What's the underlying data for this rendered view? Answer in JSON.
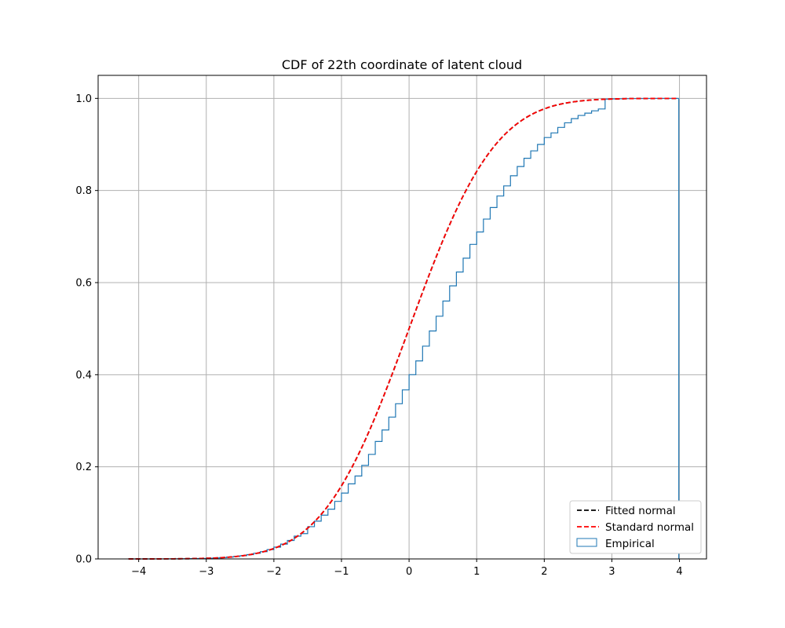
{
  "chart_data": {
    "type": "line",
    "title": "CDF of 22th coordinate of latent cloud",
    "xlabel": "",
    "ylabel": "",
    "xlim": [
      -4.6,
      4.4
    ],
    "ylim": [
      0,
      1.05
    ],
    "xticks": [
      -4,
      -3,
      -2,
      -1,
      0,
      1,
      2,
      3,
      4
    ],
    "yticks": [
      0.0,
      0.2,
      0.4,
      0.6,
      0.8,
      1.0
    ],
    "xtick_labels": [
      "−4",
      "−3",
      "−2",
      "−1",
      "0",
      "1",
      "2",
      "3",
      "4"
    ],
    "ytick_labels": [
      "0.0",
      "0.2",
      "0.4",
      "0.6",
      "0.8",
      "1.0"
    ],
    "grid": true,
    "legend_position": "lower-right",
    "series": [
      {
        "name": "Fitted normal",
        "kind": "normal-cdf",
        "mean": 0.0,
        "std": 1.0,
        "x_range": [
          -4.15,
          3.95
        ],
        "color": "#000000",
        "dash": true
      },
      {
        "name": "Standard normal",
        "kind": "normal-cdf",
        "mean": 0.0,
        "std": 1.0,
        "x_range": [
          -4.15,
          3.95
        ],
        "color": "#ff0000",
        "dash": true
      },
      {
        "name": "Empirical",
        "kind": "step-histogram",
        "color": "#1f77b4",
        "bin_width": 0.1,
        "x_range": [
          -4.15,
          3.99
        ],
        "points": [
          [
            -1.6,
            0.055
          ],
          [
            -1.5,
            0.07
          ],
          [
            -1.4,
            0.082
          ],
          [
            -1.3,
            0.095
          ],
          [
            -1.2,
            0.108
          ],
          [
            -1.1,
            0.125
          ],
          [
            -1.0,
            0.143
          ],
          [
            -0.9,
            0.163
          ],
          [
            -0.8,
            0.18
          ],
          [
            -0.7,
            0.203
          ],
          [
            -0.6,
            0.227
          ],
          [
            -0.5,
            0.255
          ],
          [
            -0.4,
            0.28
          ],
          [
            -0.3,
            0.308
          ],
          [
            -0.2,
            0.337
          ],
          [
            -0.1,
            0.367
          ],
          [
            0.0,
            0.4
          ],
          [
            0.1,
            0.43
          ],
          [
            0.2,
            0.462
          ],
          [
            0.3,
            0.495
          ],
          [
            0.4,
            0.527
          ],
          [
            0.5,
            0.56
          ],
          [
            0.6,
            0.593
          ],
          [
            0.7,
            0.623
          ],
          [
            0.8,
            0.653
          ],
          [
            0.9,
            0.683
          ],
          [
            1.0,
            0.71
          ],
          [
            1.1,
            0.738
          ],
          [
            1.2,
            0.763
          ],
          [
            1.3,
            0.788
          ],
          [
            1.4,
            0.81
          ],
          [
            1.5,
            0.832
          ],
          [
            1.6,
            0.852
          ],
          [
            1.7,
            0.87
          ],
          [
            1.8,
            0.886
          ],
          [
            1.9,
            0.9
          ],
          [
            2.0,
            0.915
          ],
          [
            2.1,
            0.925
          ],
          [
            2.2,
            0.937
          ],
          [
            2.3,
            0.947
          ],
          [
            2.4,
            0.956
          ],
          [
            2.5,
            0.963
          ],
          [
            2.6,
            0.968
          ],
          [
            2.7,
            0.973
          ],
          [
            2.8,
            0.977
          ]
        ]
      }
    ]
  }
}
